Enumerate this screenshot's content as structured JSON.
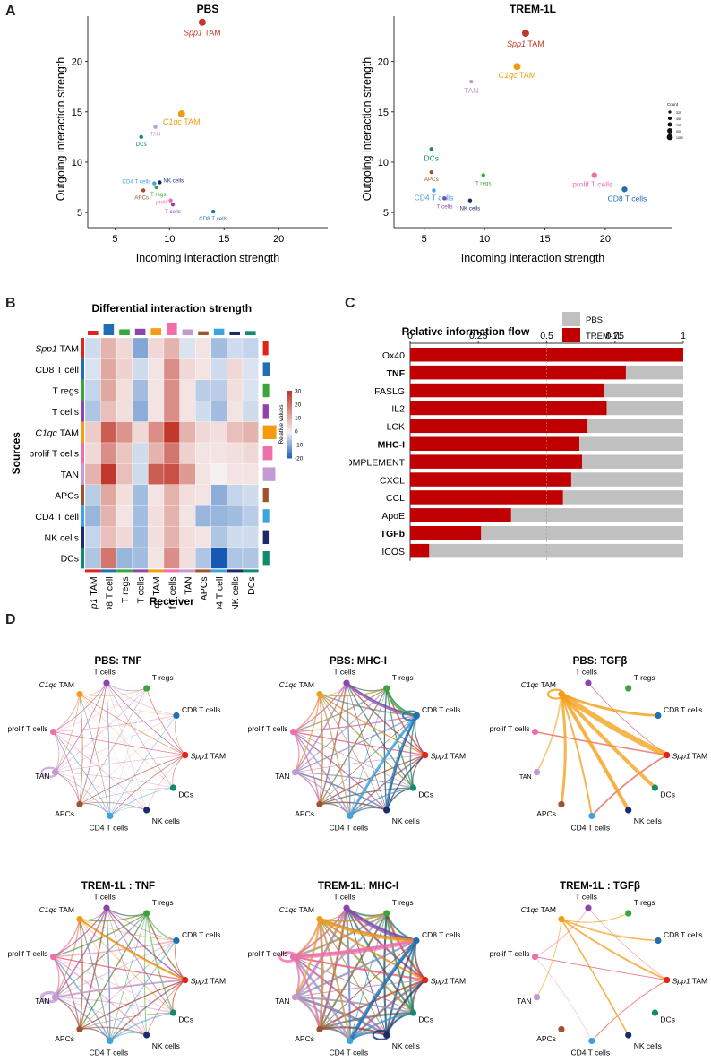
{
  "labels": {
    "A": "A",
    "B": "B",
    "C": "C",
    "D": "D"
  },
  "panelA": {
    "ylabel": "Outgoing interaction strength",
    "xlabel": "Incoming interaction strength"
  },
  "panelB": {
    "title": "Differential interaction strength",
    "ylabel": "Sources",
    "xlabel": "Receiver",
    "legend_title": "Relative values",
    "legend_ticks": [
      "30",
      "20",
      "10",
      "0",
      "-10",
      "-20"
    ]
  },
  "panelC": {
    "legend": [
      {
        "name": "PBS",
        "color": "#c0c0c0"
      },
      {
        "name": "TREM-1L",
        "color": "#c00000"
      }
    ]
  },
  "colors": {
    "Spp1 TAM": "#e2231a",
    "CD8 T cells": "#1f6fb2",
    "T regs": "#3aa53a",
    "T cells": "#8e44ad",
    "C1qc TAM": "#f39c12",
    "prolif T cells": "#f06eaa",
    "TAN": "#c39bd3",
    "APCs": "#a0522d",
    "CD4 T cells": "#3ba3e0",
    "NK cells": "#1c2a6b",
    "DCs": "#128a6d"
  },
  "chart_data": [
    {
      "type": "scatter",
      "title": "PBS",
      "xlabel": "Incoming interaction strength",
      "ylabel": "Outgoing interaction strength",
      "xlim": [
        2.5,
        24.5
      ],
      "ylim": [
        3.5,
        24.5
      ],
      "xticks": [
        5,
        10,
        15,
        20
      ],
      "yticks": [
        5,
        10,
        15,
        20
      ],
      "points": [
        {
          "name": "Spp1 TAM",
          "x": 13.0,
          "y": 23.9,
          "color": "#c0392b"
        },
        {
          "name": "C1qc TAM",
          "x": 11.1,
          "y": 14.8,
          "color": "#f39c12"
        },
        {
          "name": "TAN",
          "x": 8.7,
          "y": 13.5,
          "color": "#c39bd3"
        },
        {
          "name": "DCs",
          "x": 7.4,
          "y": 12.5,
          "color": "#128a6d"
        },
        {
          "name": "CD4 T cells",
          "x": 8.6,
          "y": 7.9,
          "color": "#3ba3e0"
        },
        {
          "name": "NK cells",
          "x": 9.1,
          "y": 8.0,
          "color": "#1c2a6b"
        },
        {
          "name": "T regs",
          "x": 8.8,
          "y": 7.5,
          "color": "#3aa53a"
        },
        {
          "name": "APCs",
          "x": 7.6,
          "y": 7.2,
          "color": "#a0522d"
        },
        {
          "name": "prolif",
          "x": 10.1,
          "y": 6.2,
          "color": "#f06eaa"
        },
        {
          "name": "T cells",
          "x": 10.3,
          "y": 5.8,
          "color": "#8e44ad"
        },
        {
          "name": "CD8 T cells",
          "x": 14.0,
          "y": 5.1,
          "color": "#1f6fb2"
        }
      ]
    },
    {
      "type": "scatter",
      "title": "TREM-1L",
      "xlabel": "Incoming interaction strength",
      "ylabel": "Outgoing interaction strength",
      "xlim": [
        2.5,
        25.5
      ],
      "ylim": [
        3.5,
        24.5
      ],
      "xticks": [
        5,
        10,
        15,
        20
      ],
      "yticks": [
        5,
        10,
        15,
        20
      ],
      "points": [
        {
          "name": "Spp1 TAM",
          "x": 13.4,
          "y": 22.8,
          "color": "#c0392b"
        },
        {
          "name": "C1qc TAM",
          "x": 12.7,
          "y": 19.5,
          "color": "#f39c12"
        },
        {
          "name": "TAN",
          "x": 8.9,
          "y": 18.0,
          "color": "#c39bd3"
        },
        {
          "name": "DCs",
          "x": 5.6,
          "y": 11.3,
          "color": "#128a6d"
        },
        {
          "name": "APCs",
          "x": 5.6,
          "y": 9.0,
          "color": "#a0522d"
        },
        {
          "name": "T regs",
          "x": 9.9,
          "y": 8.7,
          "color": "#3aa53a"
        },
        {
          "name": "CD4 T cells",
          "x": 5.8,
          "y": 7.2,
          "color": "#3ba3e0"
        },
        {
          "name": "T cells",
          "x": 6.7,
          "y": 6.4,
          "color": "#8e44ad"
        },
        {
          "name": "NK cells",
          "x": 8.8,
          "y": 6.2,
          "color": "#1c2a6b"
        },
        {
          "name": "prolif T cells",
          "x": 19.1,
          "y": 8.7,
          "color": "#f06eaa"
        },
        {
          "name": "CD8 T cells",
          "x": 21.6,
          "y": 7.3,
          "color": "#1f6fb2"
        }
      ],
      "size_legend": {
        "title": "Count",
        "values": [
          "325",
          "450",
          "750",
          "900",
          "1050"
        ]
      }
    },
    {
      "type": "heatmap",
      "title": "Differential interaction strength",
      "ylabel": "Sources",
      "xlabel": "Receiver",
      "rows": [
        "Spp1 TAM",
        "CD8 T cell",
        "T regs",
        "T cells",
        "C1qc TAM",
        "prolif T cells",
        "TAN",
        "APCs",
        "CD4 T cell",
        "NK cells",
        "DCs"
      ],
      "cols": [
        "Spp1 TAM",
        "CD8 T cell",
        "T regs",
        "T cells",
        "C1qc TAM",
        "prolif T cells",
        "TAN",
        "APCs",
        "CD4 T cell",
        "NK cells",
        "DCs"
      ],
      "colorbar": {
        "min": -20,
        "max": 30
      },
      "values": [
        [
          -3,
          10,
          4,
          -10,
          4,
          10,
          -2,
          2,
          -7,
          -3,
          -4
        ],
        [
          -2,
          12,
          5,
          -3,
          2,
          16,
          4,
          2,
          -3,
          4,
          -2
        ],
        [
          -4,
          12,
          3,
          -7,
          2,
          16,
          2,
          -5,
          -5,
          3,
          -2
        ],
        [
          -6,
          8,
          3,
          -9,
          2,
          16,
          2,
          -3,
          -7,
          2,
          -3
        ],
        [
          6,
          24,
          15,
          4,
          16,
          32,
          10,
          4,
          3,
          8,
          10
        ],
        [
          4,
          16,
          7,
          -3,
          10,
          20,
          5,
          2,
          2,
          3,
          4
        ],
        [
          10,
          30,
          8,
          -3,
          24,
          26,
          14,
          2,
          0,
          2,
          2
        ],
        [
          -5,
          12,
          3,
          -7,
          2,
          10,
          3,
          2,
          -9,
          -4,
          -3
        ],
        [
          -8,
          10,
          2,
          -7,
          3,
          10,
          2,
          -8,
          -8,
          -7,
          -5
        ],
        [
          -4,
          8,
          4,
          -7,
          3,
          10,
          3,
          2,
          -6,
          -3,
          -3
        ],
        [
          -6,
          20,
          -8,
          -7,
          2,
          16,
          3,
          -6,
          -20,
          -6,
          -6
        ]
      ]
    },
    {
      "type": "bar",
      "title": "Relative information flow",
      "orientation": "horizontal-stacked",
      "xlim": [
        0,
        1
      ],
      "xticks": [
        "0",
        "0.25",
        "0.5",
        "0.75",
        "1"
      ],
      "categories": [
        "Ox40",
        "TNF",
        "FASLG",
        "IL2",
        "LCK",
        "MHC-I",
        "COMPLEMENT",
        "CXCL",
        "CCL",
        "ApoE",
        "TGFb",
        "ICOS"
      ],
      "bold": [
        "TNF",
        "MHC-I",
        "TGFb"
      ],
      "series": [
        {
          "name": "TREM-1L",
          "values": [
            1.0,
            0.79,
            0.71,
            0.72,
            0.65,
            0.62,
            0.63,
            0.59,
            0.56,
            0.37,
            0.26,
            0.07
          ]
        },
        {
          "name": "PBS",
          "values": [
            0.0,
            0.21,
            0.29,
            0.28,
            0.35,
            0.38,
            0.37,
            0.41,
            0.44,
            0.63,
            0.74,
            0.93
          ]
        }
      ]
    }
  ],
  "networks": [
    {
      "title": "PBS: TNF"
    },
    {
      "title": "PBS: MHC-I"
    },
    {
      "title": "PBS: TGFβ"
    },
    {
      "title": "TREM-1L : TNF"
    },
    {
      "title": "TREM-1L: MHC-I"
    },
    {
      "title": "TREM-1L : TGFβ"
    }
  ]
}
